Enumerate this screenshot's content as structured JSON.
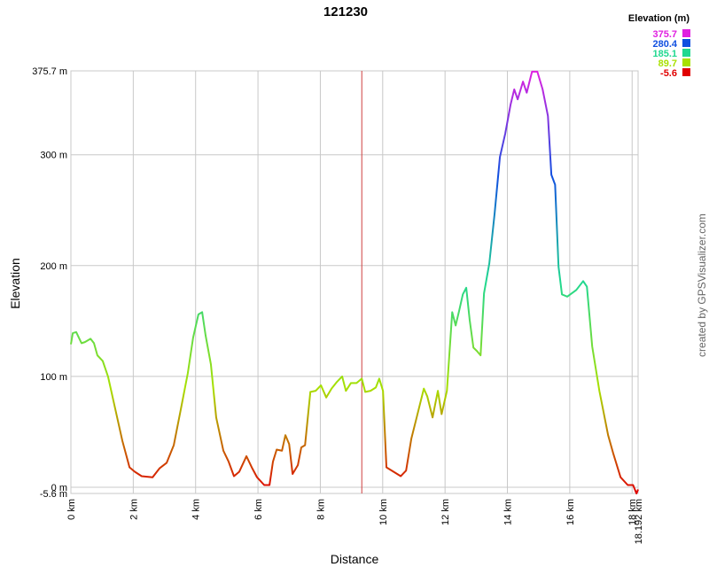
{
  "chart_data": {
    "type": "line",
    "title": "121230",
    "x_label": "Distance",
    "y_label": "Elevation",
    "credit": "created by GPSVisualizer.com",
    "legend_title": "Elevation (m)",
    "color_scale": [
      {
        "value": 375.7,
        "color": "#e020e0"
      },
      {
        "value": 280.4,
        "color": "#1050e0"
      },
      {
        "value": 185.1,
        "color": "#20d890"
      },
      {
        "value": 89.7,
        "color": "#a8e000"
      },
      {
        "value": -5.6,
        "color": "#e00000"
      }
    ],
    "xlim": [
      0,
      18.192
    ],
    "ylim": [
      -5.6,
      375.7
    ],
    "xticks": [
      {
        "value": 0,
        "label": "0 km"
      },
      {
        "value": 2,
        "label": "2 km"
      },
      {
        "value": 4,
        "label": "4 km"
      },
      {
        "value": 6,
        "label": "6 km"
      },
      {
        "value": 8,
        "label": "8 km"
      },
      {
        "value": 10,
        "label": "10 km"
      },
      {
        "value": 12,
        "label": "12 km"
      },
      {
        "value": 14,
        "label": "14 km"
      },
      {
        "value": 16,
        "label": "16 km"
      },
      {
        "value": 18,
        "label": "18 km"
      },
      {
        "value": 18.192,
        "label": "18.192 km"
      }
    ],
    "yticks": [
      {
        "value": -5.6,
        "label": "-5.6 m"
      },
      {
        "value": 0,
        "label": "0 m"
      },
      {
        "value": 100,
        "label": "100 m"
      },
      {
        "value": 200,
        "label": "200 m"
      },
      {
        "value": 300,
        "label": "300 m"
      },
      {
        "value": 375.7,
        "label": "375.7 m"
      }
    ],
    "grid": true,
    "cursor_x": 9.33,
    "cursor_color": "#d04040",
    "x": [
      0,
      0.06,
      0.17,
      0.34,
      0.45,
      0.63,
      0.74,
      0.85,
      1.02,
      1.19,
      1.42,
      1.65,
      1.88,
      2.05,
      2.27,
      2.62,
      2.84,
      3.07,
      3.3,
      3.53,
      3.75,
      3.92,
      4.09,
      4.21,
      4.32,
      4.49,
      4.66,
      4.89,
      5.06,
      5.23,
      5.4,
      5.63,
      5.8,
      5.97,
      6.2,
      6.37,
      6.48,
      6.6,
      6.77,
      6.88,
      7.0,
      7.11,
      7.28,
      7.39,
      7.51,
      7.68,
      7.85,
      8.02,
      8.19,
      8.36,
      8.53,
      8.7,
      8.82,
      8.98,
      9.16,
      9.33,
      9.44,
      9.61,
      9.78,
      9.89,
      10.01,
      10.12,
      10.35,
      10.58,
      10.75,
      10.92,
      11.09,
      11.32,
      11.43,
      11.6,
      11.77,
      11.89,
      12.06,
      12.23,
      12.34,
      12.45,
      12.57,
      12.68,
      12.79,
      12.91,
      13.02,
      13.14,
      13.25,
      13.42,
      13.59,
      13.76,
      13.93,
      14.1,
      14.22,
      14.33,
      14.5,
      14.62,
      14.79,
      14.96,
      15.13,
      15.3,
      15.41,
      15.53,
      15.64,
      15.75,
      15.92,
      16.21,
      16.43,
      16.55,
      16.72,
      16.95,
      17.23,
      17.4,
      17.63,
      17.86,
      18.03,
      18.14,
      18.192
    ],
    "values": [
      129,
      139,
      140,
      130,
      131,
      134,
      130,
      119,
      114,
      100,
      71,
      42,
      18,
      14,
      10,
      9,
      17,
      22,
      38,
      71,
      103,
      135,
      156,
      158,
      137,
      111,
      63,
      33,
      23,
      10,
      14,
      28,
      18,
      9,
      2,
      2,
      23,
      34,
      33,
      47,
      39,
      12,
      20,
      36,
      38,
      86,
      87,
      92,
      81,
      89,
      95,
      100,
      87,
      94,
      94,
      98,
      86,
      87,
      90,
      98,
      87,
      18,
      14,
      10,
      15,
      44,
      63,
      89,
      82,
      63,
      87,
      66,
      87,
      158,
      146,
      159,
      174,
      180,
      151,
      126,
      123,
      119,
      175,
      202,
      247,
      298,
      319,
      345,
      359,
      350,
      366,
      356,
      375,
      375,
      359,
      335,
      282,
      273,
      199,
      174,
      172,
      178,
      186,
      181,
      127,
      87,
      47,
      30,
      9,
      2,
      2,
      -5.6,
      -2
    ]
  }
}
